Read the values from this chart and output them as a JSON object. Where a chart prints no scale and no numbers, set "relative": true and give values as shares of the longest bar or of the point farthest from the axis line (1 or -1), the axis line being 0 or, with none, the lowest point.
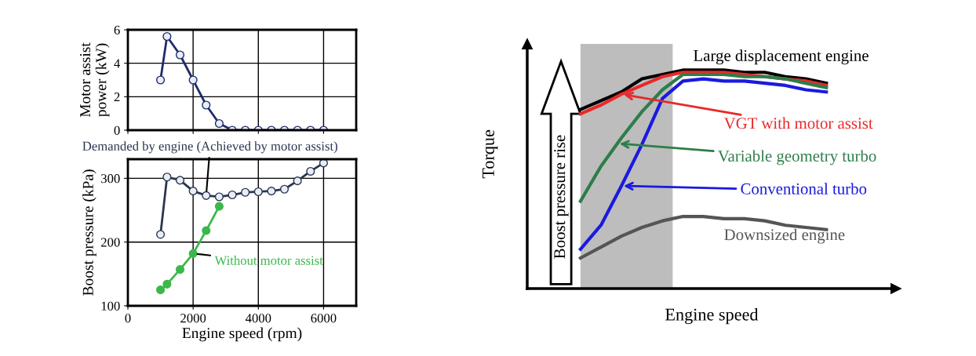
{
  "chart_data": [
    {
      "type": "line",
      "ylabel": "Motor assist\npower (kW)",
      "xlim": [
        0,
        7000
      ],
      "xticks": [
        0,
        2000,
        4000,
        6000
      ],
      "ylim": [
        0,
        6
      ],
      "yticks": [
        0,
        2,
        4,
        6
      ],
      "tick_labels": "y",
      "grid": true,
      "marker": "circle",
      "series": [
        {
          "color": "#1f2a6b",
          "x": [
            1000,
            1200,
            1600,
            2000,
            2400,
            2800,
            3200,
            3600,
            4000,
            4400,
            4800,
            5200,
            5600,
            6000
          ],
          "values": [
            3.0,
            5.6,
            4.5,
            3.0,
            1.5,
            0.4,
            0,
            0,
            0,
            0,
            0,
            0,
            0,
            0
          ]
        }
      ]
    },
    {
      "type": "line",
      "xlabel": "Engine speed (rpm)",
      "ylabel": "Boost pressure (kPa)",
      "xlim": [
        0,
        7000
      ],
      "xticks": [
        0,
        2000,
        4000,
        6000
      ],
      "ylim": [
        100,
        330
      ],
      "yticks": [
        100,
        200,
        300
      ],
      "grid": true,
      "marker": "circle",
      "series": [
        {
          "color": "#2b3550",
          "x": [
            1000,
            1200,
            1600,
            2000,
            2400,
            2800,
            3200,
            3600,
            4000,
            4400,
            4800,
            5200,
            5600,
            6000
          ],
          "values": [
            212,
            302,
            297,
            280,
            273,
            271,
            274,
            278,
            279,
            280,
            283,
            296,
            311,
            324
          ]
        },
        {
          "color": "#3cb84a",
          "x": [
            1000,
            1200,
            1600,
            2000,
            2400,
            2800
          ],
          "values": [
            125,
            134,
            157,
            182,
            218,
            256
          ]
        }
      ],
      "annotations": [
        {
          "text": "Demanded by engine (Achieved by motor assist)",
          "x": 2400,
          "y": 273
        },
        {
          "text": "Without motor assist",
          "x": 2000,
          "y": 182
        }
      ]
    },
    {
      "type": "line",
      "relative": true,
      "xlabel": "Engine speed",
      "ylabel": "Torque",
      "marker": "none",
      "categories": [
        null,
        null,
        null,
        null,
        null,
        null,
        null,
        null,
        null,
        null,
        null,
        null,
        null
      ],
      "series": [
        {
          "name": "Large displacement engine",
          "color": "#000000",
          "values": [
            0.82,
            0.86,
            0.9,
            0.96,
            0.98,
            1,
            1,
            1.0,
            0.99,
            0.99,
            0.97,
            0.96,
            0.94
          ]
        },
        {
          "name": "VGT with motor assist",
          "color": "#e8292a",
          "values": [
            0.8,
            0.84,
            0.89,
            0.93,
            0.97,
            0.99,
            0.99,
            0.99,
            0.98,
            0.97,
            0.96,
            0.95,
            0.93
          ]
        },
        {
          "name": "Variable geometry turbo",
          "color": "#2e7d4a",
          "values": [
            0.4,
            0.56,
            0.69,
            0.81,
            0.91,
            0.98,
            0.98,
            0.98,
            0.97,
            0.97,
            0.96,
            0.94,
            0.92
          ]
        },
        {
          "name": "Conventional turbo",
          "color": "#1a1ae0",
          "values": [
            0.18,
            0.29,
            0.47,
            0.66,
            0.87,
            0.95,
            0.96,
            0.95,
            0.95,
            0.94,
            0.93,
            0.91,
            0.9
          ]
        },
        {
          "name": "Downsized engine",
          "color": "#555555",
          "values": [
            0.14,
            0.19,
            0.24,
            0.28,
            0.31,
            0.33,
            0.33,
            0.32,
            0.32,
            0.31,
            0.29,
            0.28,
            0.27
          ]
        }
      ],
      "annotations": [
        "Boost pressure rise"
      ]
    }
  ]
}
